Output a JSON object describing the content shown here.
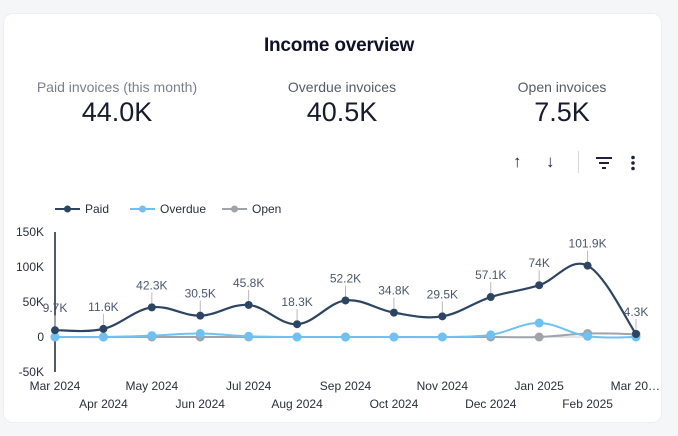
{
  "header": {
    "title": "Income overview"
  },
  "kpis": [
    {
      "label": "Paid invoices (this month)",
      "value": "44.0K"
    },
    {
      "label": "Overdue invoices",
      "value": "40.5K"
    },
    {
      "label": "Open invoices",
      "value": "7.5K"
    }
  ],
  "toolbar": {
    "sort_asc_icon": "↑",
    "sort_desc_icon": "↓",
    "filter_icon": "filter",
    "more_icon": "⋮"
  },
  "chart_data": {
    "type": "line",
    "title": "Income overview",
    "xlabel": "",
    "ylabel": "",
    "x": [
      "Mar 2024",
      "Apr 2024",
      "May 2024",
      "Jun 2024",
      "Jul 2024",
      "Aug 2024",
      "Sep 2024",
      "Oct 2024",
      "Nov 2024",
      "Dec 2024",
      "Jan 2025",
      "Feb 2025",
      "Mar 20…"
    ],
    "yticks": [
      "150K",
      "100K",
      "50K",
      "0",
      "-50K"
    ],
    "ytick_values": [
      150000,
      100000,
      50000,
      0,
      -50000
    ],
    "ylim": [
      -50000,
      150000
    ],
    "grid": false,
    "legend_position": "top-left",
    "series": [
      {
        "name": "Paid",
        "color": "#2d4562",
        "values": [
          9700,
          11600,
          42300,
          30500,
          45800,
          18300,
          52200,
          34800,
          29500,
          57100,
          74000,
          101900,
          4300
        ],
        "labels": [
          "9.7K",
          "11.6K",
          "42.3K",
          "30.5K",
          "45.8K",
          "18.3K",
          "52.2K",
          "34.8K",
          "29.5K",
          "57.1K",
          "74K",
          "101.9K",
          "4.3K"
        ]
      },
      {
        "name": "Overdue",
        "color": "#6ec1f0",
        "values": [
          0,
          0,
          2000,
          5000,
          1000,
          0,
          0,
          0,
          0,
          3000,
          20000,
          1000,
          0
        ]
      },
      {
        "name": "Open",
        "color": "#a0a4aa",
        "values": [
          0,
          0,
          0,
          0,
          0,
          0,
          0,
          0,
          0,
          0,
          0,
          5000,
          4000
        ]
      }
    ]
  }
}
